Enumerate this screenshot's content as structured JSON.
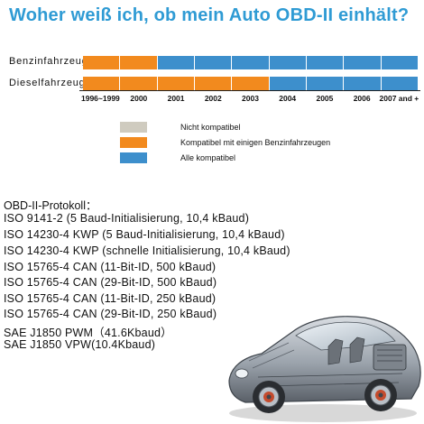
{
  "title": "Woher weiß ich, ob mein Auto OBD-II einhält?",
  "colors": {
    "accent_title": "#2f9bd4",
    "not_compatible": "#cfcbbf",
    "partial": "#f28a1e",
    "compatible": "#3d8fcc"
  },
  "compat_table": {
    "rows": [
      {
        "label": "Benzinfahrzeug:",
        "segments": [
          "partial",
          "partial",
          "compatible",
          "compatible",
          "compatible",
          "compatible",
          "compatible",
          "compatible",
          "compatible"
        ]
      },
      {
        "label": "Dieselfahrzeug:",
        "segments": [
          "partial",
          "partial",
          "partial",
          "partial",
          "partial",
          "compatible",
          "compatible",
          "compatible",
          "compatible"
        ]
      }
    ],
    "years": [
      "1996~1999",
      "2000",
      "2001",
      "2002",
      "2003",
      "2004",
      "2005",
      "2006",
      "2007 and +"
    ]
  },
  "legend": [
    {
      "key": "not_compatible",
      "label": "Nicht kompatibel"
    },
    {
      "key": "partial",
      "label": "Kompatibel mit einigen Benzinfahrzeugen"
    },
    {
      "key": "compatible",
      "label": "Alle kompatibel"
    }
  ],
  "protocols": {
    "heading": "OBD-II-Protokoll：",
    "items": [
      "ISO 9141-2 (5 Baud-Initialisierung, 10,4 kBaud)",
      "ISO 14230-4 KWP (5 Baud-Initialisierung, 10,4 kBaud)",
      "ISO 14230-4 KWP (schnelle Initialisierung, 10,4 kBaud)",
      "ISO 15765-4 CAN (11-Bit-ID, 500 kBaud)",
      "ISO 15765-4 CAN (29-Bit-ID, 500 kBaud)",
      "ISO 15765-4 CAN (11-Bit-ID, 250 kBaud)",
      "ISO 15765-4 CAN (29-Bit-ID, 250 kBaud)",
      "SAE J1850 PWM（41.6Kbaud）",
      "SAE J1850 VPW(10.4Kbaud)"
    ]
  },
  "image": {
    "icon": "car-cutaway-illustration"
  }
}
